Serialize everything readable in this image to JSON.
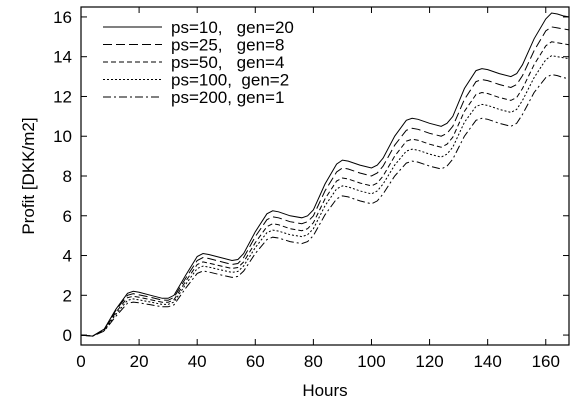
{
  "chart_data": {
    "type": "line",
    "xlabel": "Hours",
    "ylabel": "Profit [DKK/m2]",
    "xlim": [
      0,
      168
    ],
    "ylim": [
      -0.5,
      16.5
    ],
    "xticks": [
      0,
      20,
      40,
      60,
      80,
      100,
      120,
      140,
      160
    ],
    "yticks": [
      0,
      2,
      4,
      6,
      8,
      10,
      12,
      14,
      16
    ],
    "grid": false,
    "legend_position": "top-left",
    "x": [
      0,
      4,
      8,
      12,
      16,
      18,
      20,
      24,
      28,
      30,
      32,
      36,
      40,
      42,
      44,
      48,
      52,
      54,
      56,
      60,
      64,
      66,
      68,
      72,
      76,
      78,
      80,
      84,
      88,
      90,
      92,
      96,
      100,
      102,
      104,
      108,
      112,
      114,
      116,
      120,
      124,
      126,
      128,
      132,
      136,
      138,
      140,
      144,
      148,
      150,
      152,
      156,
      160,
      162,
      164,
      166,
      168
    ],
    "series": [
      {
        "name": "ps=10,   gen=20",
        "dash": "none",
        "values": [
          0,
          -0.05,
          0.3,
          1.3,
          2.1,
          2.2,
          2.15,
          2.0,
          1.85,
          1.85,
          2.0,
          3.0,
          3.95,
          4.1,
          4.05,
          3.9,
          3.75,
          3.8,
          4.1,
          5.2,
          6.1,
          6.25,
          6.2,
          6.0,
          5.9,
          6.0,
          6.3,
          7.6,
          8.6,
          8.8,
          8.75,
          8.55,
          8.4,
          8.55,
          8.9,
          10.0,
          10.8,
          10.9,
          10.85,
          10.65,
          10.5,
          10.65,
          11.0,
          12.4,
          13.3,
          13.4,
          13.35,
          13.15,
          13.0,
          13.15,
          13.6,
          14.9,
          15.9,
          16.2,
          16.15,
          16.05,
          16.0
        ]
      },
      {
        "name": "ps=25,   gen=8",
        "dash": "9,4",
        "values": [
          0,
          -0.05,
          0.28,
          1.25,
          2.0,
          2.08,
          2.02,
          1.9,
          1.76,
          1.75,
          1.9,
          2.85,
          3.75,
          3.9,
          3.85,
          3.7,
          3.55,
          3.6,
          3.9,
          4.95,
          5.8,
          5.95,
          5.9,
          5.7,
          5.6,
          5.7,
          6.0,
          7.25,
          8.2,
          8.4,
          8.35,
          8.15,
          8.0,
          8.15,
          8.5,
          9.55,
          10.3,
          10.4,
          10.35,
          10.15,
          10.0,
          10.15,
          10.5,
          11.85,
          12.75,
          12.85,
          12.8,
          12.6,
          12.45,
          12.6,
          13.05,
          14.3,
          15.3,
          15.5,
          15.45,
          15.4,
          15.35
        ]
      },
      {
        "name": "ps=50,   gen=4",
        "dash": "5,3",
        "values": [
          0,
          -0.05,
          0.25,
          1.15,
          1.88,
          1.95,
          1.9,
          1.78,
          1.65,
          1.65,
          1.78,
          2.7,
          3.55,
          3.68,
          3.62,
          3.48,
          3.35,
          3.4,
          3.68,
          4.65,
          5.45,
          5.6,
          5.55,
          5.35,
          5.25,
          5.35,
          5.65,
          6.85,
          7.75,
          7.9,
          7.85,
          7.65,
          7.5,
          7.65,
          8.0,
          9.0,
          9.75,
          9.85,
          9.8,
          9.6,
          9.45,
          9.6,
          9.95,
          11.25,
          12.1,
          12.2,
          12.15,
          11.95,
          11.8,
          11.95,
          12.4,
          13.6,
          14.55,
          14.75,
          14.7,
          14.65,
          14.6
        ]
      },
      {
        "name": "ps=100,  gen=2",
        "dash": "2,2",
        "values": [
          0,
          -0.05,
          0.22,
          1.05,
          1.75,
          1.82,
          1.77,
          1.66,
          1.54,
          1.54,
          1.66,
          2.55,
          3.35,
          3.47,
          3.42,
          3.28,
          3.15,
          3.2,
          3.48,
          4.4,
          5.15,
          5.28,
          5.23,
          5.05,
          4.95,
          5.05,
          5.35,
          6.5,
          7.35,
          7.5,
          7.45,
          7.25,
          7.1,
          7.25,
          7.6,
          8.55,
          9.25,
          9.35,
          9.3,
          9.1,
          8.95,
          9.1,
          9.45,
          10.7,
          11.5,
          11.6,
          11.55,
          11.35,
          11.2,
          11.35,
          11.8,
          12.95,
          13.85,
          14.05,
          14.0,
          13.95,
          13.9
        ]
      },
      {
        "name": "ps=200, gen=1",
        "dash": "8,3,2,3",
        "values": [
          0,
          -0.05,
          0.2,
          0.95,
          1.6,
          1.66,
          1.62,
          1.52,
          1.42,
          1.42,
          1.52,
          2.35,
          3.1,
          3.22,
          3.17,
          3.03,
          2.9,
          2.95,
          3.22,
          4.1,
          4.8,
          4.92,
          4.88,
          4.7,
          4.6,
          4.7,
          5.0,
          6.05,
          6.85,
          7.0,
          6.95,
          6.75,
          6.6,
          6.75,
          7.1,
          8.0,
          8.65,
          8.75,
          8.7,
          8.5,
          8.35,
          8.5,
          8.85,
          10.0,
          10.8,
          10.9,
          10.85,
          10.65,
          10.5,
          10.65,
          11.1,
          12.2,
          12.95,
          13.1,
          13.05,
          12.95,
          12.9
        ]
      }
    ]
  }
}
